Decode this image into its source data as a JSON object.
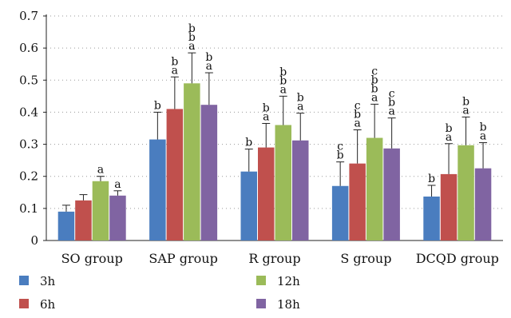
{
  "chart_data": {
    "type": "bar",
    "title": "",
    "xlabel": "",
    "ylabel": "",
    "ylim": [
      0,
      0.7
    ],
    "yticks": [
      0,
      0.1,
      0.2,
      0.3,
      0.4,
      0.5,
      0.6,
      0.7
    ],
    "ytick_labels": [
      "0",
      "0.1",
      "0.2",
      "0.3",
      "0.4",
      "0.5",
      "0.6",
      "0.7"
    ],
    "grid": "horizontal dotted",
    "legend_position": "bottom",
    "categories": [
      "SO group",
      "SAP group",
      "R group",
      "S group",
      "DCQD group"
    ],
    "series": [
      {
        "name": "3h",
        "color": "#4a7dbf",
        "values": [
          0.09,
          0.315,
          0.215,
          0.17,
          0.137
        ],
        "errors": [
          0.02,
          0.085,
          0.07,
          0.075,
          0.035
        ],
        "sig": [
          [],
          [
            "b"
          ],
          [
            "b"
          ],
          [
            "b",
            "c"
          ],
          [
            "b"
          ]
        ]
      },
      {
        "name": "6h",
        "color": "#c0504d",
        "values": [
          0.125,
          0.41,
          0.29,
          0.24,
          0.207
        ],
        "errors": [
          0.018,
          0.1,
          0.075,
          0.105,
          0.095
        ],
        "sig": [
          [],
          [
            "a",
            "b"
          ],
          [
            "a",
            "b"
          ],
          [
            "a",
            "b",
            "c"
          ],
          [
            "a",
            "b"
          ]
        ]
      },
      {
        "name": "12h",
        "color": "#9bbb59",
        "values": [
          0.185,
          0.49,
          0.36,
          0.32,
          0.297
        ],
        "errors": [
          0.015,
          0.095,
          0.09,
          0.105,
          0.088
        ],
        "sig": [
          [
            "a"
          ],
          [
            "a",
            "b",
            "b"
          ],
          [
            "a",
            "b",
            "b"
          ],
          [
            "a",
            "b",
            "b",
            "c"
          ],
          [
            "a",
            "b"
          ]
        ]
      },
      {
        "name": "18h",
        "color": "#8064a2",
        "values": [
          0.14,
          0.423,
          0.312,
          0.287,
          0.225
        ],
        "errors": [
          0.015,
          0.1,
          0.085,
          0.095,
          0.08
        ],
        "sig": [
          [
            "a"
          ],
          [
            "a",
            "b"
          ],
          [
            "a",
            "b"
          ],
          [
            "a",
            "b",
            "c"
          ],
          [
            "a",
            "b"
          ]
        ]
      }
    ]
  }
}
